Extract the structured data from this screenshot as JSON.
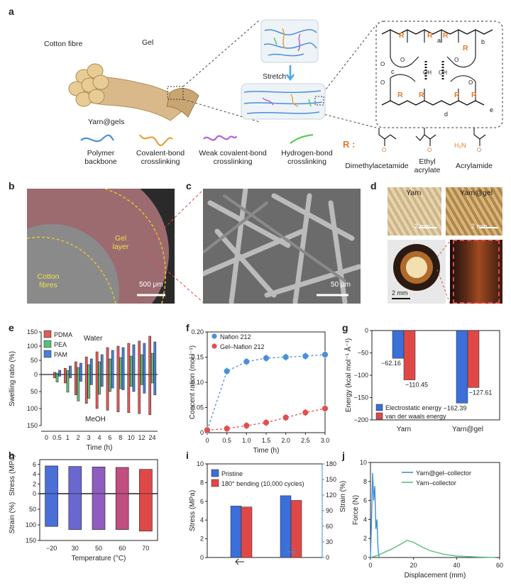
{
  "panels": {
    "a": "a",
    "b": "b",
    "c": "c",
    "d": "d",
    "e": "e",
    "f": "f",
    "g": "g",
    "h": "h",
    "i": "i",
    "j": "j"
  },
  "schematic": {
    "cotton_fibre": "Cotton fibre",
    "gel": "Gel",
    "yarn_gels": "Yarn@gels",
    "stretch": "Stretch",
    "legend": [
      {
        "label": "Polymer backbone",
        "color": "#4a90d9"
      },
      {
        "label": "Covalent-bond crosslinking",
        "color": "#e8a040"
      },
      {
        "label": "Weak covalent-bond crosslinking",
        "color": "#b65fd8"
      },
      {
        "label": "Hydrogen-bond crosslinking",
        "color": "#5ac85a"
      }
    ],
    "r_prefix": "R :",
    "r_groups": [
      "Dimethylacetamide",
      "Ethyl acrylate",
      "Acrylamide"
    ],
    "chem_letters": [
      "a",
      "b",
      "c",
      "d",
      "e"
    ],
    "chem_r": "R",
    "chem_o": "O",
    "chem_oh": "OH",
    "nh2": "H₂N"
  },
  "panel_b": {
    "gel_layer": "Gel layer",
    "cotton_fibres": "Cotton fibres",
    "scale": "500 μm"
  },
  "panel_c": {
    "scale": "50 μm"
  },
  "panel_d": {
    "yarn": "Yarn",
    "yarn_gel": "Yarn@gel",
    "scale1": "2 mm",
    "scale2": "2 mm",
    "scale3": "2 mm"
  },
  "chart_data": [
    {
      "id": "e",
      "type": "bar",
      "ylabel": "Swelling ratio (%)",
      "xlabel": "Time (h)",
      "categories": [
        "0",
        "0.5",
        "1",
        "2",
        "3",
        "4",
        "6",
        "8",
        "10",
        "12",
        "24"
      ],
      "annotations": [
        "Water",
        "MeOH"
      ],
      "yticks_top": [
        "150",
        "100",
        "50",
        "0"
      ],
      "yticks_bottom": [
        "50",
        "100",
        "150"
      ],
      "series": [
        {
          "name": "PDMA",
          "color": "#e05a5a",
          "water": [
            0,
            8,
            22,
            45,
            62,
            80,
            95,
            100,
            110,
            118,
            135
          ],
          "meoh": [
            0,
            10,
            25,
            60,
            85,
            100,
            105,
            110,
            112,
            115,
            118
          ]
        },
        {
          "name": "PEA",
          "color": "#5cbf7a",
          "water": [
            0,
            5,
            14,
            25,
            35,
            45,
            55,
            60,
            65,
            70,
            75
          ],
          "meoh": [
            0,
            22,
            52,
            78,
            70,
            58,
            50,
            42,
            35,
            30,
            25
          ]
        },
        {
          "name": "PAM",
          "color": "#4a7fd6",
          "water": [
            0,
            15,
            30,
            40,
            55,
            70,
            85,
            95,
            105,
            110,
            115
          ],
          "meoh": [
            0,
            5,
            10,
            20,
            30,
            35,
            40,
            45,
            50,
            55,
            60
          ]
        }
      ]
    },
    {
      "id": "f",
      "type": "scatter",
      "ylabel": "Concent ration (mol l⁻¹)",
      "xlabel": "Time (h)",
      "xlim": [
        0,
        3
      ],
      "ylim": [
        0,
        0.2
      ],
      "xticks": [
        "0",
        "0.5",
        "1.0",
        "1.5",
        "2.0",
        "2.5",
        "3.0"
      ],
      "yticks": [
        "0",
        "0.05",
        "0.10",
        "0.15",
        "0.20"
      ],
      "series": [
        {
          "name": "Nafion 212",
          "color": "#4a90d9",
          "x": [
            0,
            0.5,
            1.0,
            1.5,
            2.0,
            2.5,
            3.0
          ],
          "y": [
            0.005,
            0.122,
            0.141,
            0.148,
            0.15,
            0.152,
            0.155
          ]
        },
        {
          "name": "Gel–Nafion 212",
          "color": "#e05050",
          "x": [
            0,
            0.5,
            1.0,
            1.5,
            2.0,
            2.5,
            3.0
          ],
          "y": [
            0.005,
            0.008,
            0.014,
            0.02,
            0.03,
            0.04,
            0.048
          ]
        }
      ]
    },
    {
      "id": "g",
      "type": "bar",
      "ylabel": "Energy (kcal mol⁻¹ Å⁻¹)",
      "categories": [
        "Yarn",
        "Yarn@gel"
      ],
      "ylim": [
        -200,
        0
      ],
      "yticks": [
        "0",
        "−50",
        "−100",
        "−150",
        "−200"
      ],
      "legend": "bottom-left",
      "series": [
        {
          "name": "Electrostatic energy",
          "color": "#3b6fd9",
          "values": [
            -62.16,
            -162.39
          ],
          "labels": [
            "−62.16",
            "−162.39"
          ]
        },
        {
          "name": "van der waals energy",
          "color": "#e04848",
          "values": [
            -110.45,
            -127.61
          ],
          "labels": [
            "−110.45",
            "−127.61"
          ]
        }
      ]
    },
    {
      "id": "h",
      "type": "bar",
      "xlabel": "Temperature (°C)",
      "ylabel_top": "Stress (MPa)",
      "ylabel_bottom": "Strain (%)",
      "categories": [
        "−20",
        "30",
        "50",
        "60",
        "70"
      ],
      "colors": [
        "#4a6fd6",
        "#6a68d0",
        "#8f5cc0",
        "#c04e80",
        "#e04848"
      ],
      "stress": [
        5.7,
        5.6,
        5.5,
        5.4,
        5.0
      ],
      "strain": [
        105,
        115,
        115,
        115,
        120
      ],
      "yticks_top": [
        "6",
        "4",
        "2",
        "0"
      ],
      "yticks_bottom": [
        "50",
        "100",
        "150"
      ]
    },
    {
      "id": "i",
      "type": "bar",
      "ylabel_left": "Stress (MPa)",
      "ylabel_right": "Strain (%)",
      "yticks_left": [
        "0",
        "2",
        "4",
        "6",
        "8",
        "10"
      ],
      "yticks_right": [
        "0",
        "30",
        "60",
        "90",
        "120",
        "150",
        "180"
      ],
      "series": [
        {
          "name": "Pristine",
          "color": "#3b6fd9",
          "values": [
            5.5,
            6.6
          ]
        },
        {
          "name": "180° bending (10,000 cycles)",
          "color": "#e04848",
          "values": [
            5.4,
            6.1
          ]
        }
      ]
    },
    {
      "id": "j",
      "type": "line",
      "xlabel": "Displacement (mm)",
      "ylabel": "Force (N)",
      "xlim": [
        0,
        60
      ],
      "ylim": [
        0,
        10
      ],
      "xticks": [
        "0",
        "20",
        "40",
        "60"
      ],
      "yticks": [
        "0",
        "2",
        "4",
        "6",
        "8",
        "10"
      ],
      "series": [
        {
          "name": "Yarn@gel–collector",
          "color": "#3b8fd9",
          "x": [
            0,
            0.5,
            1,
            1.5,
            2,
            2.5,
            3,
            3.5,
            4
          ],
          "y": [
            0,
            4,
            8.9,
            6,
            7.5,
            3,
            4,
            1,
            0
          ]
        },
        {
          "name": "Yarn–collector",
          "color": "#5cbf7a",
          "x": [
            0,
            3,
            6,
            10,
            14,
            17,
            20,
            24,
            28,
            34,
            40,
            50,
            58
          ],
          "y": [
            0,
            0.2,
            0.5,
            0.9,
            1.4,
            1.8,
            1.6,
            1.1,
            0.7,
            0.35,
            0.15,
            0.05,
            0
          ]
        }
      ]
    }
  ]
}
